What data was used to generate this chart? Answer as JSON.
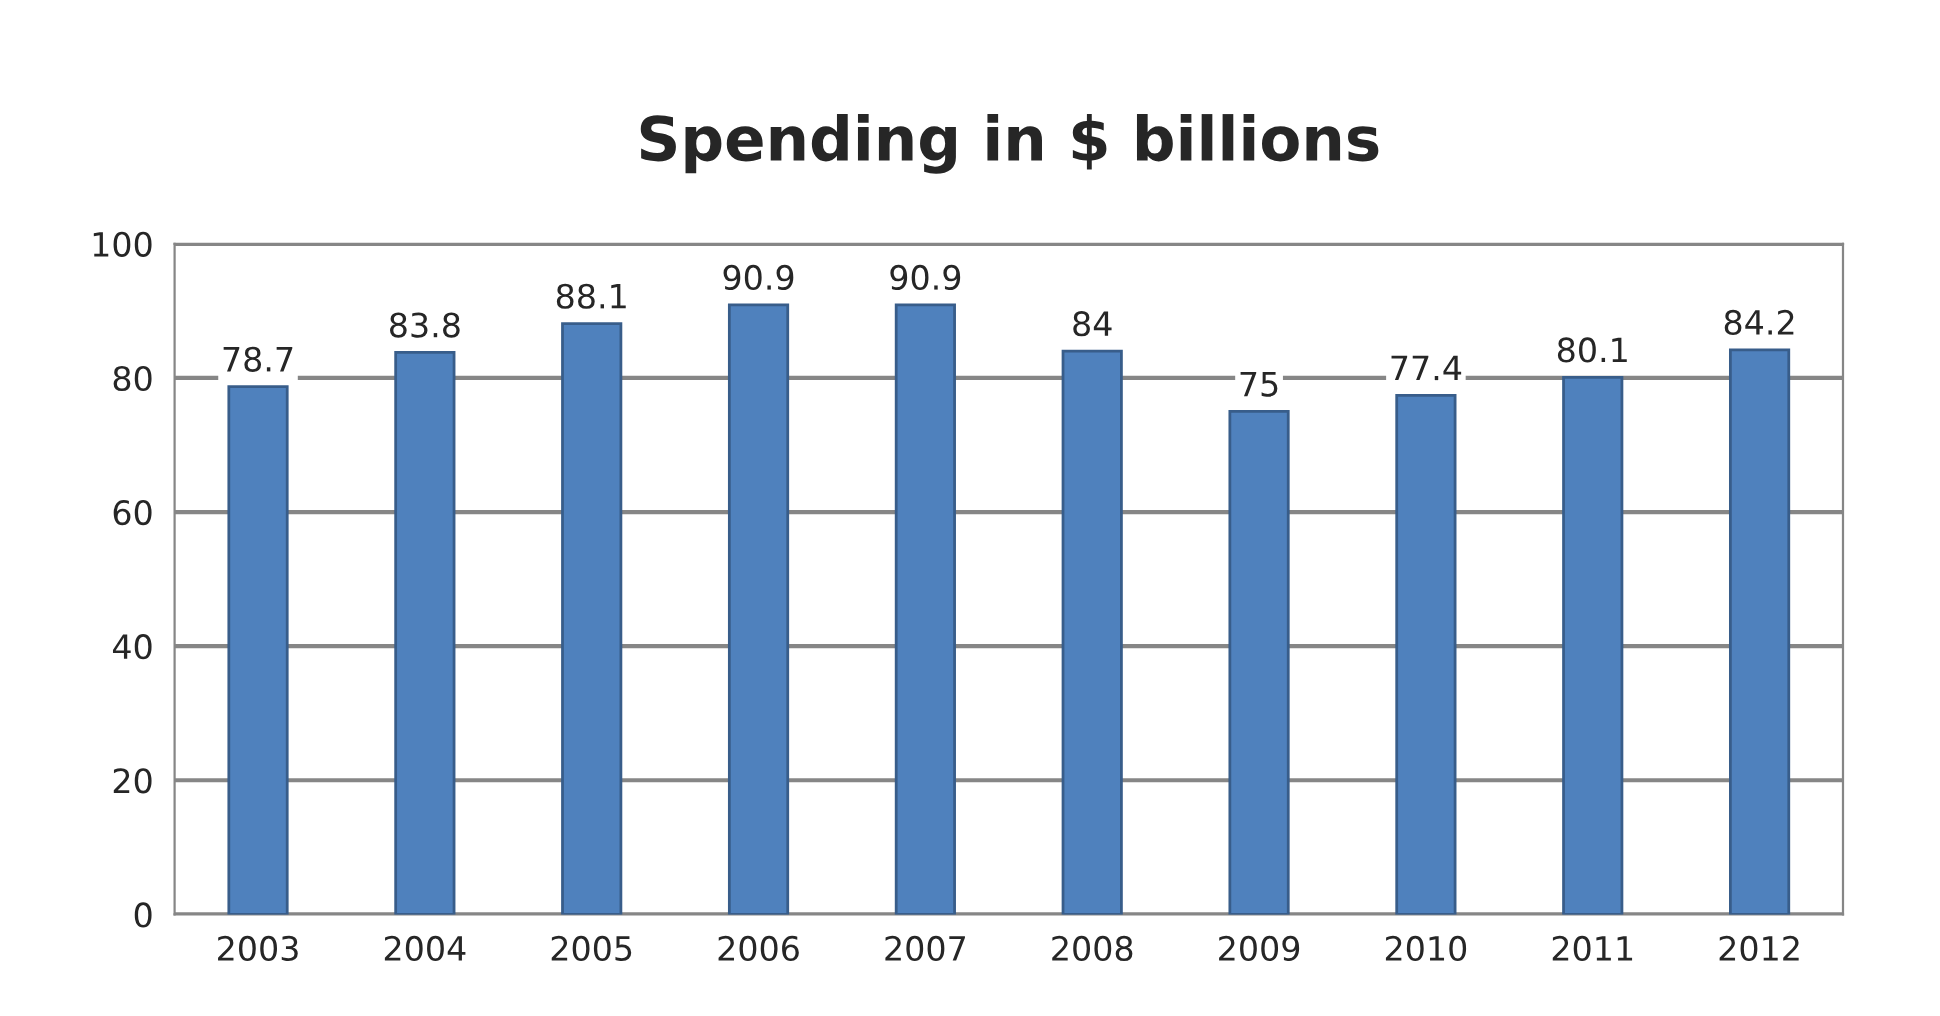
{
  "chart_data": {
    "type": "bar",
    "title": "Spending in $ billions",
    "categories": [
      "2003",
      "2004",
      "2005",
      "2006",
      "2007",
      "2008",
      "2009",
      "2010",
      "2011",
      "2012"
    ],
    "values": [
      78.7,
      83.8,
      88.1,
      90.9,
      90.9,
      84,
      75,
      77.4,
      80.1,
      84.2
    ],
    "color": "#4f81bd",
    "ylim": [
      0,
      100
    ],
    "yticks": [
      0,
      20,
      40,
      60,
      80,
      100
    ],
    "grid": "y",
    "data_labels": true
  }
}
